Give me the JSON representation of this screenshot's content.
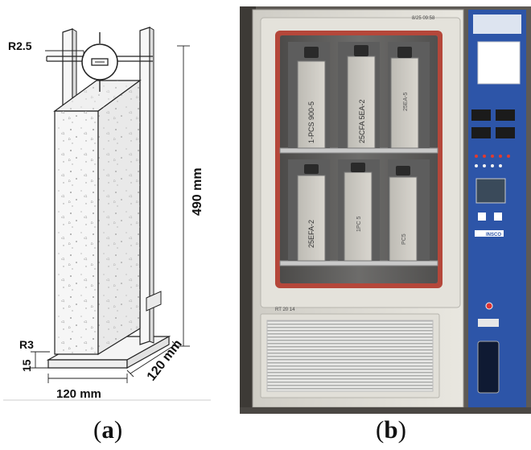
{
  "panel_a": {
    "radius_top": "R2.5",
    "radius_bottom": "R3",
    "base_height": "15",
    "width_label": "120 mm",
    "depth_label": "120 mm",
    "height_label": "490 mm",
    "caption_open": "(",
    "caption_letter": "a",
    "caption_close": ")"
  },
  "panel_b": {
    "specimen_labels": [
      "1-PCS 900-5",
      "25CFA 5EA-2",
      "25EA-5",
      "25EFA-2",
      "1PC 5",
      "PC5"
    ],
    "door_note": "8/25 09:58",
    "panel_note": "INSCO",
    "bottom_note": "RT 20 14",
    "caption_open": "(",
    "caption_letter": "b",
    "caption_close": ")"
  },
  "colors": {
    "line": "#222222",
    "concrete": "#f4f4f4",
    "chamber_seal": "#b5473a",
    "control_blue": "#2d55a8"
  }
}
